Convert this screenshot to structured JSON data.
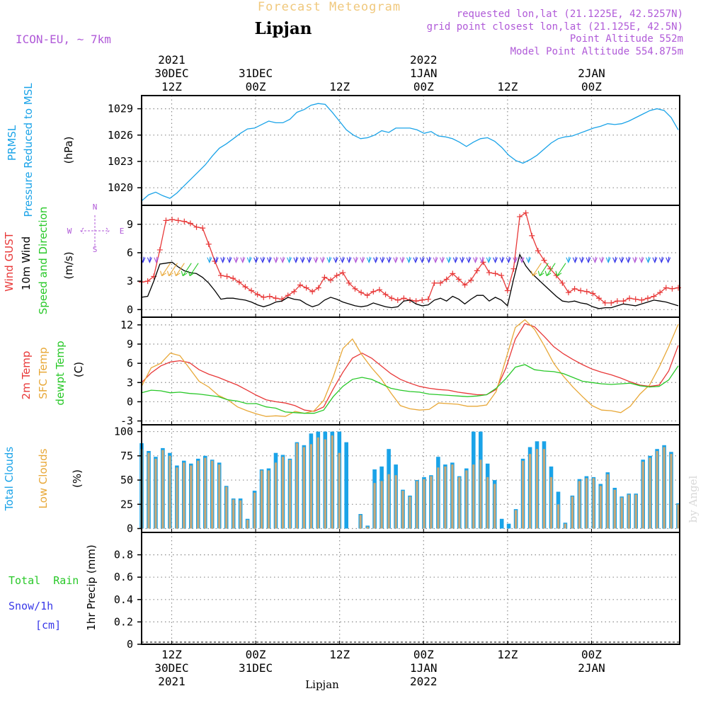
{
  "colors": {
    "purple": "#b05ad8",
    "cyan": "#1aa3e8",
    "orange": "#e8a838",
    "red": "#e83838",
    "green": "#28c828",
    "black": "#000000",
    "blue": "#3838e8",
    "tan": "#c8a878",
    "watermark": "#d8d8d8",
    "pale": "#f0c87c"
  },
  "header": {
    "title_faint": "Forecast Meteogram",
    "location": "Lipjan",
    "model": "ICON-EU, ~ 7km",
    "info": [
      "requested lon,lat (21.1225E, 42.5257N)",
      "grid point closest lon,lat (21.125E, 42.5N)",
      "Point Altitude 552m",
      "Model Point Altitude 554.875m"
    ]
  },
  "top_axis": [
    {
      "t": 12,
      "lines": [
        "2021",
        "30DEC",
        "12Z"
      ]
    },
    {
      "t": 24,
      "lines": [
        "31DEC",
        "00Z"
      ]
    },
    {
      "t": 36,
      "lines": [
        "12Z"
      ]
    },
    {
      "t": 48,
      "lines": [
        "2022",
        "1JAN",
        "00Z"
      ]
    },
    {
      "t": 60,
      "lines": [
        "12Z"
      ]
    },
    {
      "t": 72,
      "lines": [
        "2JAN",
        "00Z"
      ]
    }
  ],
  "bottom_axis": [
    {
      "t": 12,
      "lines": [
        "12Z",
        "30DEC",
        "2021"
      ]
    },
    {
      "t": 24,
      "lines": [
        "00Z",
        "31DEC"
      ]
    },
    {
      "t": 36,
      "lines": [
        "12Z"
      ]
    },
    {
      "t": 48,
      "lines": [
        "00Z",
        "1JAN",
        "2022"
      ]
    },
    {
      "t": 60,
      "lines": [
        "12Z"
      ]
    },
    {
      "t": 72,
      "lines": [
        "00Z",
        "2JAN"
      ]
    }
  ],
  "footer": {
    "location": "Lipjan",
    "watermark": "by Angel"
  },
  "chart_data": [
    {
      "type": "line",
      "id": "pressure",
      "title": "PRMSL Pressure Reduced to MSL",
      "ylabel": "(hPa)",
      "side_labels": [
        "PRMSL",
        "Pressure Reduced to MSL"
      ],
      "ylim": [
        1018,
        1030.5
      ],
      "yticks": [
        1020,
        1023,
        1026,
        1029
      ],
      "series": [
        {
          "name": "PRMSL",
          "color": "cyan",
          "values": [
            1018.5,
            1019.2,
            1019.5,
            1019.1,
            1018.8,
            1019.4,
            1020.2,
            1021.0,
            1021.8,
            1022.6,
            1023.6,
            1024.5,
            1025.0,
            1025.6,
            1026.2,
            1026.7,
            1026.8,
            1027.2,
            1027.6,
            1027.4,
            1027.4,
            1027.8,
            1028.6,
            1028.9,
            1029.4,
            1029.6,
            1029.5,
            1028.6,
            1027.6,
            1026.6,
            1026.0,
            1025.6,
            1025.7,
            1026.0,
            1026.5,
            1026.3,
            1026.8,
            1026.8,
            1026.8,
            1026.6,
            1026.2,
            1026.4,
            1025.9,
            1025.8,
            1025.6,
            1025.2,
            1024.7,
            1025.2,
            1025.6,
            1025.7,
            1025.3,
            1024.6,
            1023.7,
            1023.1,
            1022.8,
            1023.2,
            1023.7,
            1024.4,
            1025.1,
            1025.6,
            1025.8,
            1025.9,
            1026.2,
            1026.5,
            1026.8,
            1027.0,
            1027.3,
            1027.2,
            1027.3,
            1027.6,
            1028.0,
            1028.4,
            1028.8,
            1029.0,
            1028.8,
            1028.0,
            1026.6
          ]
        }
      ]
    },
    {
      "type": "line",
      "id": "wind",
      "title": "Wind GUST / 10m Wind Speed and Direction",
      "ylabel": "(m/s)",
      "side_labels": [
        "Wind GUST",
        "10m Wind",
        "Speed and Direction"
      ],
      "compass": {
        "n": "N",
        "w": "W",
        "e": "E",
        "s": "S"
      },
      "ylim": [
        -0.8,
        11
      ],
      "yticks": [
        0,
        3,
        6,
        9
      ],
      "series": [
        {
          "name": "Wind GUST",
          "color": "red",
          "marker": "+",
          "values": [
            2.9,
            3.0,
            3.5,
            6.3,
            9.4,
            9.5,
            9.4,
            9.3,
            9.1,
            8.7,
            8.6,
            6.9,
            5.1,
            3.6,
            3.5,
            3.3,
            2.9,
            2.4,
            2.0,
            1.6,
            1.3,
            1.4,
            1.2,
            1.1,
            1.5,
            1.9,
            2.6,
            2.3,
            1.9,
            2.3,
            3.4,
            3.1,
            3.6,
            3.9,
            2.8,
            2.2,
            1.8,
            1.5,
            1.9,
            2.1,
            1.6,
            1.2,
            1.0,
            1.2,
            1.0,
            0.9,
            1.0,
            1.1,
            2.8,
            2.8,
            3.2,
            3.8,
            3.2,
            2.6,
            3.1,
            4.1,
            5.0,
            3.9,
            3.8,
            3.6,
            2.0,
            4.3,
            9.8,
            10.2,
            7.8,
            6.2,
            5.2,
            4.3,
            3.6,
            2.8,
            1.8,
            2.2,
            2.0,
            1.9,
            1.7,
            1.2,
            0.7,
            0.7,
            0.9,
            0.9,
            1.2,
            1.1,
            1.0,
            1.2,
            1.4,
            1.8,
            2.3,
            2.2,
            2.3
          ]
        },
        {
          "name": "10m Wind",
          "color": "black",
          "values": [
            1.3,
            1.4,
            3.0,
            4.8,
            4.9,
            5.0,
            4.5,
            4.1,
            3.9,
            3.8,
            3.4,
            2.8,
            2.0,
            1.1,
            1.2,
            1.2,
            1.1,
            1.0,
            0.8,
            0.5,
            0.3,
            0.5,
            0.8,
            0.9,
            1.3,
            1.1,
            1.0,
            0.6,
            0.3,
            0.5,
            1.0,
            1.3,
            1.1,
            0.8,
            0.6,
            0.4,
            0.3,
            0.4,
            0.7,
            0.5,
            0.3,
            0.2,
            0.3,
            0.9,
            1.0,
            0.6,
            0.4,
            0.5,
            1.0,
            1.2,
            0.9,
            1.4,
            1.1,
            0.6,
            1.1,
            1.5,
            1.5,
            0.9,
            1.3,
            1.0,
            0.4,
            3.2,
            5.8,
            4.6,
            3.8,
            3.2,
            2.6,
            2.0,
            1.4,
            0.9,
            0.8,
            0.9,
            0.7,
            0.6,
            0.3,
            0.1,
            0.2,
            0.2,
            0.4,
            0.6,
            0.5,
            0.4,
            0.6,
            0.8,
            1.0,
            0.9,
            0.8,
            0.6,
            0.4
          ]
        }
      ]
    },
    {
      "type": "line",
      "id": "temperature",
      "title": "2m Temp / SFC Temp / dewpt Temp",
      "ylabel": "(C)",
      "side_labels": [
        "2m Temp",
        "SFC Temp",
        "dewpt Temp"
      ],
      "ylim": [
        -3.6,
        13.2
      ],
      "yticks": [
        -3,
        0,
        3,
        6,
        9,
        12
      ],
      "series": [
        {
          "name": "2m Temp",
          "color": "red",
          "values": [
            3.0,
            4.5,
            5.6,
            6.2,
            6.4,
            6.1,
            5.0,
            4.3,
            3.8,
            3.2,
            2.6,
            1.8,
            1.0,
            0.3,
            0.0,
            -0.2,
            -0.6,
            -1.3,
            -1.5,
            -0.8,
            2.0,
            4.6,
            6.8,
            7.6,
            6.8,
            5.6,
            4.4,
            3.5,
            2.9,
            2.4,
            2.1,
            1.9,
            1.8,
            1.5,
            1.3,
            1.1,
            1.1,
            1.9,
            5.2,
            9.8,
            12.2,
            11.7,
            10.2,
            8.6,
            7.5,
            6.6,
            5.8,
            5.1,
            4.6,
            4.2,
            3.7,
            3.1,
            2.6,
            2.4,
            2.6,
            4.8,
            8.8
          ]
        },
        {
          "name": "SFC Temp",
          "color": "orange",
          "values": [
            2.4,
            5.3,
            6.0,
            7.6,
            7.2,
            5.2,
            3.2,
            2.3,
            1.0,
            0.3,
            -0.8,
            -1.4,
            -1.9,
            -2.3,
            -2.2,
            -2.3,
            -1.5,
            -1.8,
            -1.4,
            0.2,
            3.9,
            8.3,
            9.8,
            7.3,
            5.3,
            3.6,
            1.4,
            -0.6,
            -1.1,
            -1.3,
            -1.2,
            -0.2,
            -0.3,
            -0.4,
            -0.7,
            -0.7,
            -0.5,
            1.6,
            6.6,
            11.6,
            12.8,
            11.3,
            8.8,
            6.0,
            4.0,
            2.3,
            0.8,
            -0.6,
            -1.3,
            -1.4,
            -1.7,
            -0.7,
            1.2,
            2.6,
            5.4,
            8.6,
            12.1
          ]
        },
        {
          "name": "dewpt Temp",
          "color": "green",
          "values": [
            1.4,
            1.8,
            1.7,
            1.4,
            1.5,
            1.3,
            1.2,
            1.0,
            0.8,
            0.3,
            0.1,
            -0.3,
            -0.3,
            -0.8,
            -1.0,
            -1.6,
            -1.7,
            -1.8,
            -1.8,
            -1.3,
            0.8,
            2.4,
            3.5,
            3.8,
            3.5,
            2.8,
            2.1,
            1.8,
            1.6,
            1.5,
            1.2,
            1.1,
            1.0,
            0.9,
            0.8,
            0.9,
            1.1,
            2.1,
            3.6,
            5.4,
            5.8,
            5.0,
            4.8,
            4.7,
            4.4,
            3.8,
            3.2,
            3.0,
            2.8,
            2.7,
            2.8,
            2.9,
            2.5,
            2.3,
            2.4,
            3.4,
            5.6
          ]
        }
      ]
    },
    {
      "type": "bar",
      "id": "clouds",
      "title": "Total Clouds / Low Clouds",
      "ylabel": "(%)",
      "side_labels": [
        "Total Clouds",
        "Low Clouds"
      ],
      "ylim": [
        -4,
        107
      ],
      "yticks": [
        0,
        25,
        50,
        75,
        100
      ],
      "series": [
        {
          "name": "Total Clouds",
          "color": "cyan",
          "values": [
            88,
            80,
            74,
            83,
            78,
            65,
            70,
            67,
            72,
            75,
            71,
            68,
            44,
            31,
            31,
            10,
            39,
            61,
            62,
            78,
            76,
            72,
            89,
            86,
            98,
            100,
            100,
            100,
            100,
            89,
            0,
            15,
            3,
            61,
            64,
            82,
            66,
            40,
            34,
            50,
            53,
            55,
            74,
            66,
            68,
            54,
            62,
            100,
            100,
            67,
            50,
            10,
            5,
            20,
            72,
            84,
            90,
            90,
            64,
            38,
            6,
            34,
            51,
            54,
            53,
            46,
            58,
            42,
            33,
            36,
            36,
            71,
            75,
            82,
            86,
            79,
            26
          ]
        },
        {
          "name": "Low Clouds",
          "color": "tan",
          "values": [
            82,
            78,
            72,
            81,
            75,
            63,
            68,
            65,
            70,
            73,
            70,
            66,
            43,
            30,
            29,
            9,
            37,
            60,
            60,
            68,
            74,
            71,
            88,
            84,
            87,
            94,
            92,
            96,
            78,
            0,
            0,
            14,
            2,
            47,
            49,
            56,
            55,
            39,
            33,
            49,
            51,
            54,
            63,
            64,
            66,
            53,
            60,
            66,
            71,
            53,
            46,
            0,
            0,
            19,
            70,
            77,
            82,
            82,
            53,
            25,
            5,
            33,
            49,
            52,
            52,
            44,
            56,
            40,
            32,
            35,
            35,
            69,
            73,
            80,
            84,
            77,
            25
          ]
        }
      ]
    },
    {
      "type": "bar",
      "id": "precip",
      "title": "1hr Precip (mm)",
      "ylabel": "1hr Precip (mm)",
      "side_labels": [
        "Total  Rain",
        "Snow/1h",
        "[cm]"
      ],
      "ylim": [
        0,
        1.0
      ],
      "yticks": [
        0,
        0.2,
        0.4,
        0.6,
        0.8
      ],
      "ytick_labels": [
        "0",
        "0.2",
        "0.4",
        "0.6",
        "0.8"
      ],
      "series": [
        {
          "name": "Total Rain",
          "color": "green",
          "values": []
        },
        {
          "name": "Snow/1h",
          "color": "blue",
          "values": []
        }
      ]
    }
  ]
}
